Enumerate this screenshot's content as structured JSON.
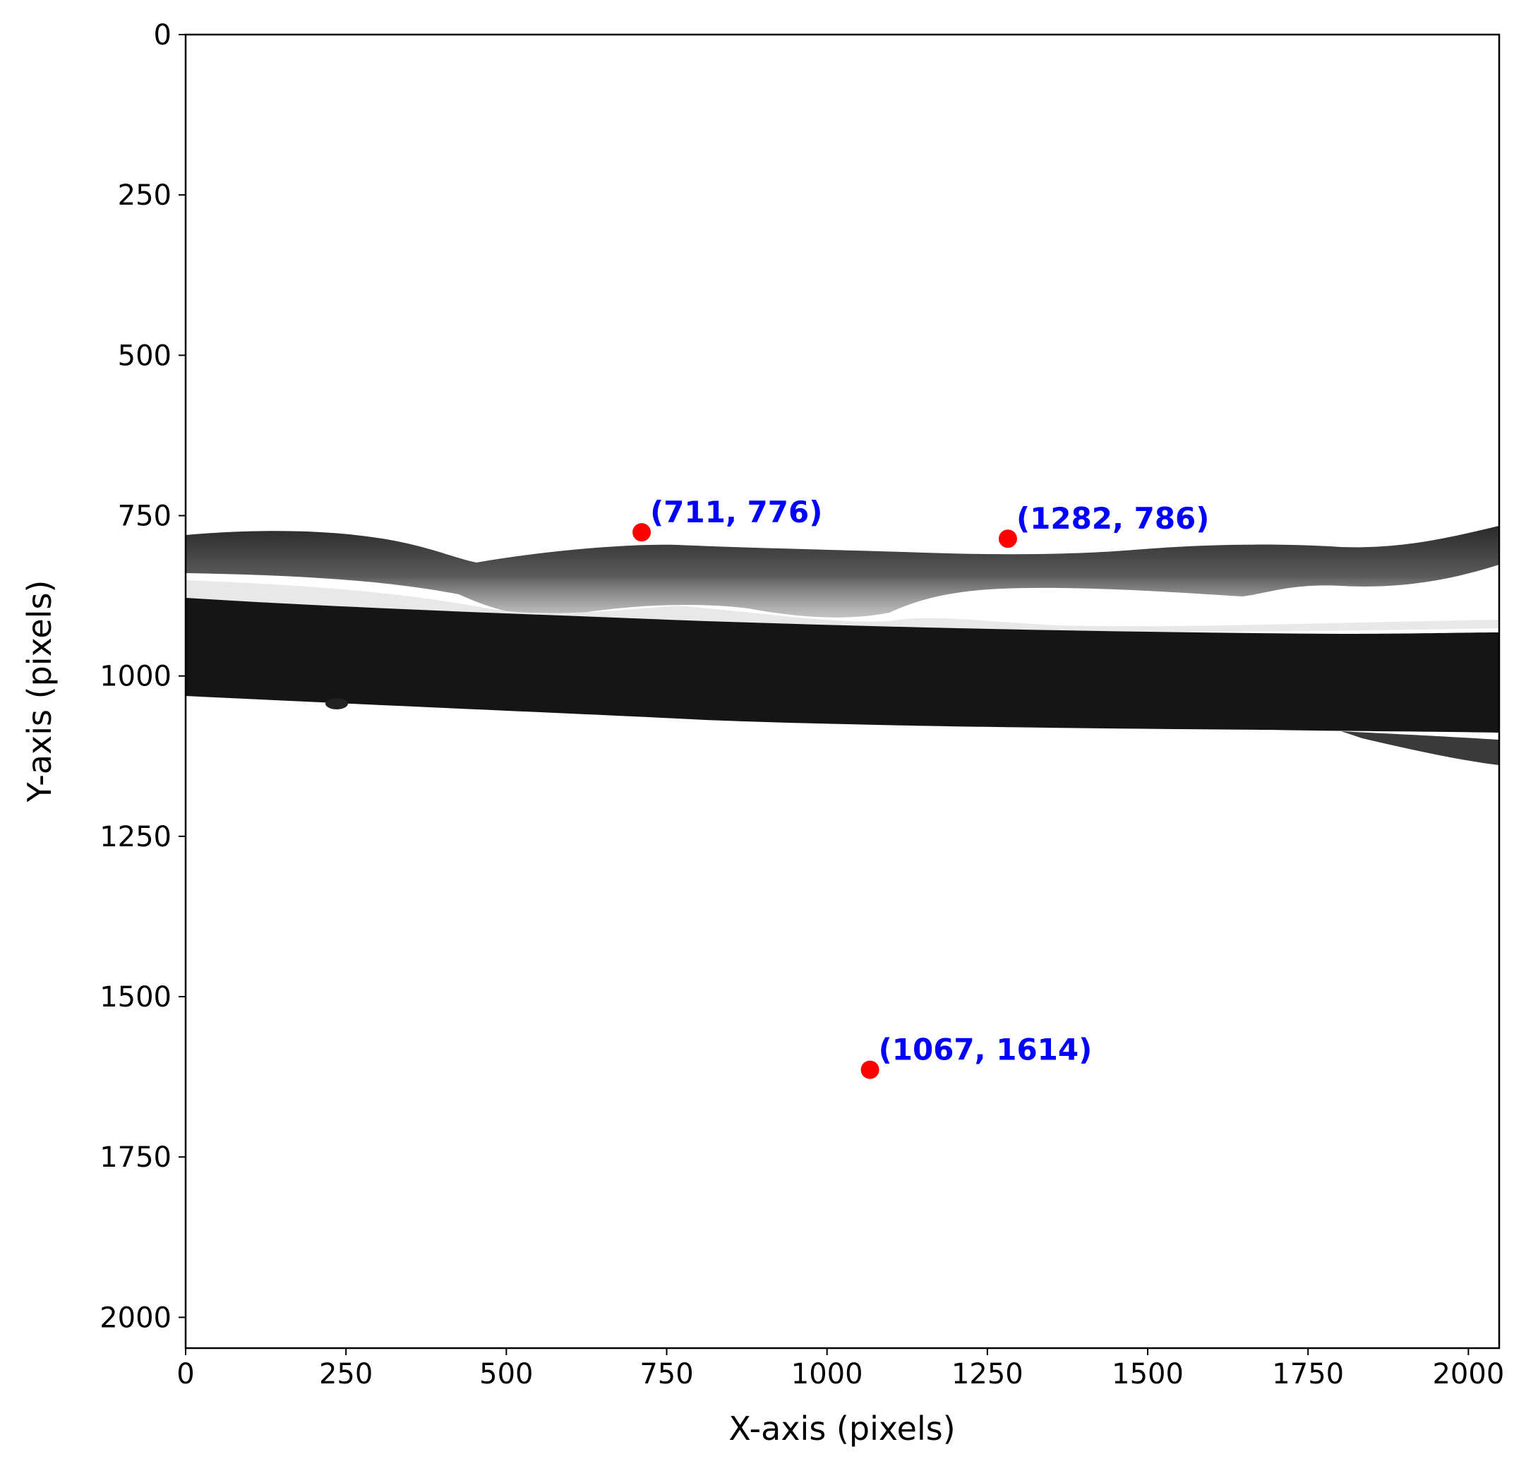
{
  "chart_data": {
    "type": "scatter",
    "title": "",
    "xlabel": "X-axis (pixels)",
    "ylabel": "Y-axis (pixels)",
    "xlim": [
      0,
      2048
    ],
    "ylim": [
      2048,
      0
    ],
    "y_inverted": true,
    "grid": false,
    "background_image": "grayscale micrograph of a dark horizontal fiber with a thinner translucent strand above it",
    "xticks": [
      0,
      250,
      500,
      750,
      1000,
      1250,
      1500,
      1750,
      2000
    ],
    "xtick_labels": [
      "0",
      "250",
      "500",
      "750",
      "1000",
      "1250",
      "1500",
      "1750",
      "2000"
    ],
    "yticks": [
      0,
      250,
      500,
      750,
      1000,
      1250,
      1500,
      1750,
      2000
    ],
    "ytick_labels": [
      "0",
      "250",
      "500",
      "750",
      "1000",
      "1250",
      "1500",
      "1750",
      "2000"
    ],
    "points": [
      {
        "x": 711,
        "y": 776,
        "label": "(711, 776)"
      },
      {
        "x": 1282,
        "y": 786,
        "label": "(1282, 786)"
      },
      {
        "x": 1067,
        "y": 1614,
        "label": "(1067, 1614)"
      }
    ],
    "colors": {
      "marker": "#ff0000",
      "annotation": "#0000ff",
      "fiber": "#1a1a1a"
    }
  }
}
